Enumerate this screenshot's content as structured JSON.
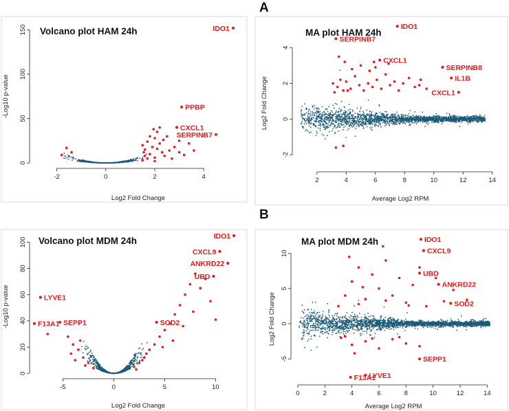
{
  "figure": {
    "section_labels": [
      "A",
      "B"
    ],
    "colors": {
      "background_points": "#1b5a78",
      "significant_points": "#e41a1c",
      "gene_label": "#e41a1c"
    }
  },
  "chart_data": [
    {
      "id": "volcano_ham",
      "type": "scatter",
      "kind": "volcano",
      "title": "Volcano plot HAM 24h",
      "xlabel": "Log2 Fold Change",
      "ylabel": "-Log10 p-value",
      "xlim": [
        -3,
        5.4
      ],
      "ylim": [
        -3,
        158
      ],
      "xticks": [
        -2,
        0,
        2,
        4
      ],
      "yticks": [
        0,
        50,
        100,
        150
      ],
      "background_count": 700,
      "labeled_genes": [
        {
          "gene": "IDO1",
          "x": 5.2,
          "y": 152
        },
        {
          "gene": "PPBP",
          "x": 3.1,
          "y": 63
        },
        {
          "gene": "CXCL1",
          "x": 2.9,
          "y": 40
        },
        {
          "gene": "SERPINB7",
          "x": 4.5,
          "y": 32
        }
      ],
      "significant_points": [
        [
          1.5,
          20
        ],
        [
          1.7,
          24
        ],
        [
          1.6,
          15
        ],
        [
          1.9,
          18
        ],
        [
          2.0,
          28
        ],
        [
          1.8,
          10
        ],
        [
          2.1,
          35
        ],
        [
          2.2,
          22
        ],
        [
          2.3,
          12
        ],
        [
          2.5,
          30
        ],
        [
          1.6,
          8
        ],
        [
          1.7,
          5
        ],
        [
          2.0,
          6
        ],
        [
          2.4,
          8
        ],
        [
          2.6,
          14
        ],
        [
          2.8,
          18
        ],
        [
          3.0,
          12
        ],
        [
          3.2,
          9
        ],
        [
          3.4,
          22
        ],
        [
          3.0,
          25
        ],
        [
          2.0,
          2
        ],
        [
          1.5,
          3
        ],
        [
          1.8,
          30
        ],
        [
          2.2,
          40
        ],
        [
          2.7,
          5
        ],
        [
          3.6,
          14
        ],
        [
          1.55,
          12
        ],
        [
          2.1,
          16
        ],
        [
          2.35,
          26
        ],
        [
          1.95,
          38
        ],
        [
          -1.4,
          12
        ],
        [
          -1.6,
          17
        ],
        [
          -1.8,
          9
        ]
      ]
    },
    {
      "id": "ma_ham",
      "type": "scatter",
      "kind": "ma",
      "title": "MA plot HAM 24h",
      "xlabel": "Average Log2 RPM",
      "ylabel": "Log2 Fold Change",
      "xlim": [
        0.5,
        14.3
      ],
      "ylim": [
        -2.8,
        5.4
      ],
      "xticks": [
        2,
        4,
        6,
        8,
        10,
        12,
        14
      ],
      "yticks": [
        -2,
        0,
        2,
        4
      ],
      "background_count": 2200,
      "labeled_genes": [
        {
          "gene": "IDO1",
          "x": 7.5,
          "y": 5.2
        },
        {
          "gene": "SERPINB7",
          "x": 3.3,
          "y": 4.5
        },
        {
          "gene": "CXCL1",
          "x": 6.3,
          "y": 3.3
        },
        {
          "gene": "SERPINB8",
          "x": 10.6,
          "y": 2.9
        },
        {
          "gene": "IL1B",
          "x": 11.2,
          "y": 2.3
        },
        {
          "gene": "CXCL1",
          "x": 11.7,
          "y": 1.5
        }
      ],
      "significant_points": [
        [
          3.1,
          2.0
        ],
        [
          3.4,
          1.8
        ],
        [
          3.6,
          2.2
        ],
        [
          3.8,
          1.6
        ],
        [
          4.0,
          2.1
        ],
        [
          4.3,
          1.7
        ],
        [
          4.6,
          2.4
        ],
        [
          4.9,
          1.9
        ],
        [
          5.2,
          1.6
        ],
        [
          5.5,
          2.0
        ],
        [
          5.8,
          1.8
        ],
        [
          6.1,
          2.2
        ],
        [
          6.4,
          1.7
        ],
        [
          6.7,
          2.5
        ],
        [
          7.0,
          1.9
        ],
        [
          7.3,
          2.1
        ],
        [
          7.6,
          1.6
        ],
        [
          7.9,
          2.0
        ],
        [
          8.3,
          2.3
        ],
        [
          8.7,
          1.8
        ],
        [
          9.1,
          2.2
        ],
        [
          9.5,
          1.7
        ],
        [
          3.5,
          3.5
        ],
        [
          3.9,
          3.2
        ],
        [
          4.4,
          2.8
        ],
        [
          5.0,
          3.0
        ],
        [
          5.6,
          2.7
        ],
        [
          6.9,
          3.1
        ],
        [
          3.2,
          1.5
        ],
        [
          4.1,
          1.6
        ],
        [
          6.0,
          2.9
        ],
        [
          9.0,
          1.9
        ],
        [
          5.9,
          3.2
        ],
        [
          3.3,
          -1.6
        ],
        [
          3.8,
          -1.5
        ]
      ]
    },
    {
      "id": "volcano_mdm",
      "type": "scatter",
      "kind": "volcano",
      "title": "Volcano plot MDM 24h",
      "xlabel": "Log2 Fold Change",
      "ylabel": "-Log10 p-value",
      "xlim": [
        -8,
        12.2
      ],
      "ylim": [
        -2,
        106
      ],
      "xticks": [
        -5,
        0,
        5,
        10
      ],
      "yticks": [
        0,
        20,
        40,
        60,
        80,
        100
      ],
      "background_count": 900,
      "labeled_genes": [
        {
          "gene": "IDO1",
          "x": 11.8,
          "y": 105
        },
        {
          "gene": "CXCL9",
          "x": 10.4,
          "y": 93
        },
        {
          "gene": "ANKRD22",
          "x": 11.2,
          "y": 84
        },
        {
          "gene": "UBD",
          "x": 9.8,
          "y": 74
        },
        {
          "gene": "LYVE1",
          "x": -7.2,
          "y": 58
        },
        {
          "gene": "SEPP1",
          "x": -5.3,
          "y": 39
        },
        {
          "gene": "F13A1",
          "x": -7.8,
          "y": 38
        },
        {
          "gene": "SOD2",
          "x": 4.2,
          "y": 39
        }
      ],
      "significant_points": [
        [
          2,
          5
        ],
        [
          2.5,
          8
        ],
        [
          3,
          12
        ],
        [
          3.5,
          18
        ],
        [
          4,
          22
        ],
        [
          4.5,
          28
        ],
        [
          5,
          33
        ],
        [
          5.5,
          38
        ],
        [
          6,
          45
        ],
        [
          6.5,
          52
        ],
        [
          7,
          60
        ],
        [
          7.5,
          68
        ],
        [
          8,
          76
        ],
        [
          8.5,
          65
        ],
        [
          9,
          72
        ],
        [
          9.5,
          55
        ],
        [
          10,
          41
        ],
        [
          7.8,
          47
        ],
        [
          6.8,
          36
        ],
        [
          5.8,
          25
        ],
        [
          3.2,
          15
        ],
        [
          2.2,
          3
        ],
        [
          2.8,
          10
        ],
        [
          4.8,
          20
        ],
        [
          -2,
          4
        ],
        [
          -2.5,
          8
        ],
        [
          -3,
          12
        ],
        [
          -3.5,
          18
        ],
        [
          -4,
          22
        ],
        [
          -4.5,
          28
        ],
        [
          -3.8,
          10
        ],
        [
          -2.8,
          6
        ],
        [
          -4.2,
          15
        ],
        [
          -3.3,
          25
        ],
        [
          -6.5,
          30
        ]
      ]
    },
    {
      "id": "ma_mdm",
      "type": "scatter",
      "kind": "ma",
      "title": "MA plot MDM 24h",
      "xlabel": "Average Log2 RPM",
      "ylabel": "Log2 Fold Change",
      "xlim": [
        -0.3,
        15
      ],
      "ylim": [
        -8.3,
        12.8
      ],
      "xticks": [
        0,
        2,
        4,
        6,
        8,
        10,
        12,
        14
      ],
      "yticks": [
        -5,
        0,
        5,
        10
      ],
      "background_count": 2400,
      "labeled_genes": [
        {
          "gene": "IDO1",
          "x": 9.1,
          "y": 12.0
        },
        {
          "gene": "CXCL9",
          "x": 9.3,
          "y": 10.4
        },
        {
          "gene": "UBD",
          "x": 9.0,
          "y": 7.2
        },
        {
          "gene": "ANKRD22",
          "x": 10.4,
          "y": 5.6
        },
        {
          "gene": "SOD2",
          "x": 11.3,
          "y": 2.9
        },
        {
          "gene": "SEPP1",
          "x": 9.0,
          "y": -5.0
        },
        {
          "gene": "F13A1",
          "x": 3.9,
          "y": -7.6
        },
        {
          "gene": "LYVE1",
          "x": 5.0,
          "y": -7.3
        }
      ],
      "significant_points": [
        [
          3,
          2.5
        ],
        [
          3.5,
          4
        ],
        [
          4,
          6
        ],
        [
          4.5,
          8
        ],
        [
          5,
          3.5
        ],
        [
          5.5,
          7
        ],
        [
          6,
          5
        ],
        [
          6.5,
          9
        ],
        [
          7,
          4
        ],
        [
          7.5,
          6.5
        ],
        [
          8,
          3
        ],
        [
          8.5,
          5.5
        ],
        [
          9,
          8
        ],
        [
          3.2,
          -2
        ],
        [
          4,
          -3
        ],
        [
          5,
          -2.5
        ],
        [
          6,
          -3.5
        ],
        [
          7,
          -2.2
        ],
        [
          8,
          -2.8
        ],
        [
          9,
          -3.2
        ],
        [
          9.5,
          2.5
        ],
        [
          10.2,
          6.5
        ],
        [
          10.8,
          3.2
        ],
        [
          11.5,
          4.8
        ],
        [
          12.5,
          3.4
        ],
        [
          3.5,
          -1.8
        ],
        [
          4.5,
          2.8
        ],
        [
          5.5,
          -2.1
        ],
        [
          6.5,
          3.3
        ],
        [
          7.5,
          -1.9
        ],
        [
          3.8,
          9.5
        ],
        [
          4.8,
          5.2
        ],
        [
          6.3,
          11
        ],
        [
          8.2,
          2.6
        ],
        [
          4.2,
          -4.2
        ]
      ]
    }
  ]
}
